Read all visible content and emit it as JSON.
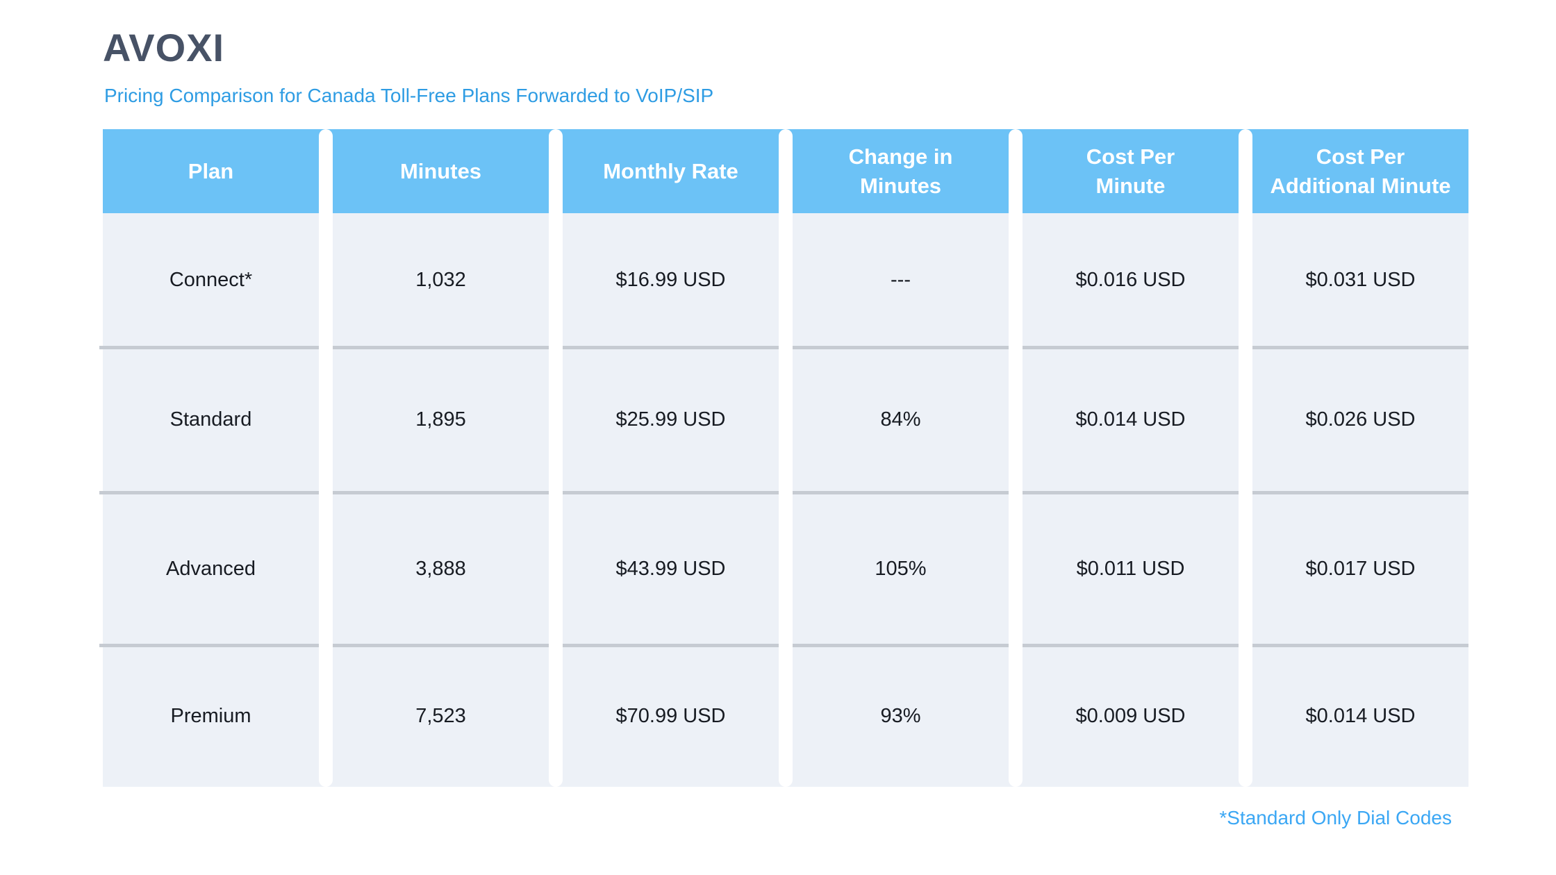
{
  "page": {
    "brand": "AVOXI",
    "subtitle": "Pricing Comparison for Canada Toll-Free Plans Forwarded to VoIP/SIP",
    "footnote": "*Standard Only Dial Codes"
  },
  "colors": {
    "brand_text": "#475266",
    "accent_blue": "#2E9CE3",
    "footnote_blue": "#3BA7F4",
    "header_bg": "#6CC2F6",
    "header_text": "#FFFFFF",
    "cell_bg": "#EDF1F7",
    "cell_text": "#171B22",
    "row_separator": "#C6CBD2"
  },
  "table": {
    "columns": [
      "Plan",
      "Minutes",
      "Monthly Rate",
      "Change in\nMinutes",
      "Cost Per\nMinute",
      "Cost Per\nAdditional Minute"
    ],
    "rows": [
      [
        "Connect*",
        "1,032",
        "$16.99 USD",
        "---",
        "$0.016 USD",
        "$0.031 USD"
      ],
      [
        "Standard",
        "1,895",
        "$25.99 USD",
        "84%",
        "$0.014 USD",
        "$0.026 USD"
      ],
      [
        "Advanced",
        "3,888",
        "$43.99 USD",
        "105%",
        "$0.011 USD",
        "$0.017 USD"
      ],
      [
        "Premium",
        "7,523",
        "$70.99 USD",
        "93%",
        "$0.009 USD",
        "$0.014 USD"
      ]
    ]
  },
  "chart_data": {
    "type": "table",
    "title": "AVOXI",
    "subtitle": "Pricing Comparison for Canada Toll-Free Plans Forwarded to VoIP/SIP",
    "footnote": "*Standard Only Dial Codes",
    "columns": [
      "Plan",
      "Minutes",
      "Monthly Rate",
      "Change in Minutes",
      "Cost Per Minute",
      "Cost Per Additional Minute"
    ],
    "rows": [
      {
        "plan": "Connect*",
        "minutes": 1032,
        "monthly_rate_usd": 16.99,
        "change_in_minutes": null,
        "cost_per_minute_usd": 0.016,
        "cost_per_additional_minute_usd": 0.031
      },
      {
        "plan": "Standard",
        "minutes": 1895,
        "monthly_rate_usd": 25.99,
        "change_in_minutes_pct": 84,
        "cost_per_minute_usd": 0.014,
        "cost_per_additional_minute_usd": 0.026
      },
      {
        "plan": "Advanced",
        "minutes": 3888,
        "monthly_rate_usd": 43.99,
        "change_in_minutes_pct": 105,
        "cost_per_minute_usd": 0.011,
        "cost_per_additional_minute_usd": 0.017
      },
      {
        "plan": "Premium",
        "minutes": 7523,
        "monthly_rate_usd": 70.99,
        "change_in_minutes_pct": 93,
        "cost_per_minute_usd": 0.009,
        "cost_per_additional_minute_usd": 0.014
      }
    ]
  }
}
